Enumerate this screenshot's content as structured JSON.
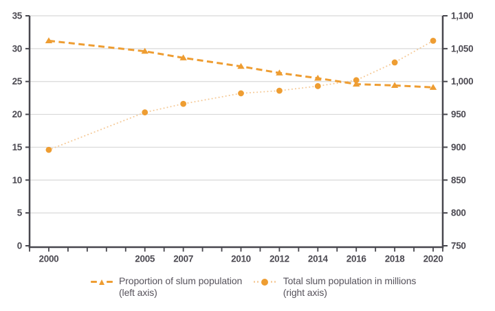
{
  "chart_data": {
    "type": "line",
    "x": [
      2000,
      2005,
      2007,
      2010,
      2012,
      2014,
      2016,
      2018,
      2020
    ],
    "x_tick_labels": [
      "2000",
      "2005",
      "2007",
      "2010",
      "2012",
      "2014",
      "2016",
      "2018",
      "2020"
    ],
    "x_range": [
      1999,
      2020.5
    ],
    "x_minor_ticks_every_year": true,
    "grid": "horizontal",
    "legend_position": "bottom",
    "series": [
      {
        "name": "Proportion of slum population (left axis)",
        "axis": "left",
        "marker": "triangle",
        "line_style": "dashed",
        "values": [
          31.2,
          29.6,
          28.6,
          27.3,
          26.3,
          25.5,
          24.6,
          24.4,
          24.1
        ]
      },
      {
        "name": "Total slum population in millions (right axis)",
        "axis": "right",
        "marker": "circle",
        "line_style": "dotted",
        "values": [
          896,
          953,
          966,
          982,
          986,
          993,
          1002,
          1029,
          1062
        ]
      }
    ],
    "left_axis": {
      "min": 0,
      "max": 35,
      "step": 5,
      "tick_labels": [
        "0",
        "5",
        "10",
        "15",
        "20",
        "25",
        "30",
        "35"
      ]
    },
    "right_axis": {
      "min": 750,
      "max": 1100,
      "step": 50,
      "tick_labels": [
        "750",
        "800",
        "850",
        "900",
        "950",
        "1,000",
        "1,050",
        "1,100"
      ]
    }
  },
  "legend": {
    "items": [
      {
        "marker": "dashed-triangle",
        "label_line1": "Proportion of slum population",
        "label_line2": "(left axis)"
      },
      {
        "marker": "dotted-circle",
        "label_line1": "Total slum population in millions",
        "label_line2": "(right axis)"
      }
    ]
  },
  "colors": {
    "series_orange": "#EE9D32",
    "dotted_line_orange": "#F5C996",
    "gridline": "#D8D8D8",
    "axis": "#47464D",
    "tick_label": "#4C4A52",
    "legend_text": "#56525B",
    "background": "#FFFFFF"
  }
}
